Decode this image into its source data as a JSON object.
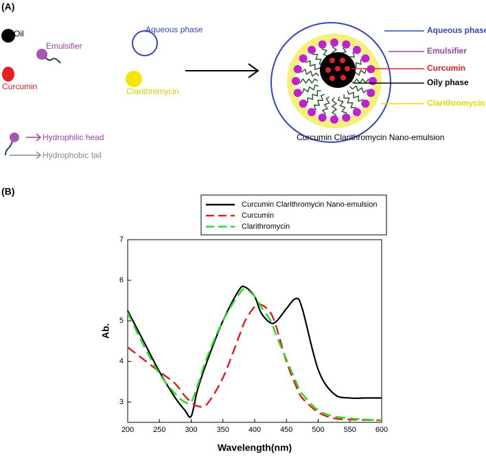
{
  "panel_a": {
    "label": "(A)",
    "oil": "Oil",
    "emulsifier": "Emulsifier",
    "aqueous_phase": "Aqueous phase",
    "curcumin": "Curcumin",
    "clarithromycin": "Clarithromycin",
    "hydrophilic_head": "Hydrophilic head",
    "hydrophobic_tail": "Hydrophobic tail",
    "nano_labels": [
      "Aqueous phase",
      "Emulsifier",
      "Curcumin",
      "Oily phase",
      "Clarithromycin"
    ],
    "caption": "Curcumin Clarithromycin Nano-emulsion"
  },
  "panel_b": {
    "label": "(B)"
  },
  "chart_data": {
    "type": "line",
    "xlabel": "Wavelength(nm)",
    "ylabel": "Ab.",
    "x": [
      200,
      225,
      250,
      275,
      290,
      300,
      310,
      325,
      350,
      375,
      385,
      400,
      410,
      425,
      435,
      450,
      465,
      475,
      500,
      525,
      550,
      575,
      600
    ],
    "series": [
      {
        "name": "Curcumin Clarithromycin Nano-emulsion",
        "color": "#000000",
        "dash": "solid",
        "values": [
          5.25,
          4.5,
          3.75,
          3.1,
          2.8,
          2.65,
          3.3,
          4.0,
          5.0,
          5.75,
          5.83,
          5.6,
          5.2,
          4.95,
          5.0,
          5.3,
          5.55,
          5.3,
          3.8,
          3.2,
          3.1,
          3.1,
          3.1
        ]
      },
      {
        "name": "Curcumin",
        "color": "#e02020",
        "dash": "dashed",
        "values": [
          4.35,
          4.05,
          3.75,
          3.45,
          3.15,
          3.0,
          2.9,
          2.95,
          3.6,
          4.6,
          5.0,
          5.35,
          5.4,
          5.2,
          4.8,
          4.0,
          3.4,
          3.1,
          2.75,
          2.6,
          2.57,
          2.56,
          2.55
        ]
      },
      {
        "name": "Clarithromycin",
        "color": "#22dd22",
        "dash": "dashed",
        "values": [
          5.2,
          4.4,
          3.7,
          3.2,
          3.0,
          3.0,
          3.4,
          4.1,
          5.0,
          5.65,
          5.78,
          5.6,
          5.35,
          5.0,
          4.6,
          4.05,
          3.5,
          3.2,
          2.8,
          2.65,
          2.6,
          2.57,
          2.55
        ]
      }
    ],
    "xlim": [
      200,
      600
    ],
    "xticks": [
      200,
      250,
      300,
      350,
      400,
      450,
      500,
      550,
      600
    ],
    "ylim": [
      2.5,
      7
    ],
    "yticks": [
      3,
      4,
      5,
      6,
      7
    ],
    "grid": false,
    "legend": "top"
  }
}
